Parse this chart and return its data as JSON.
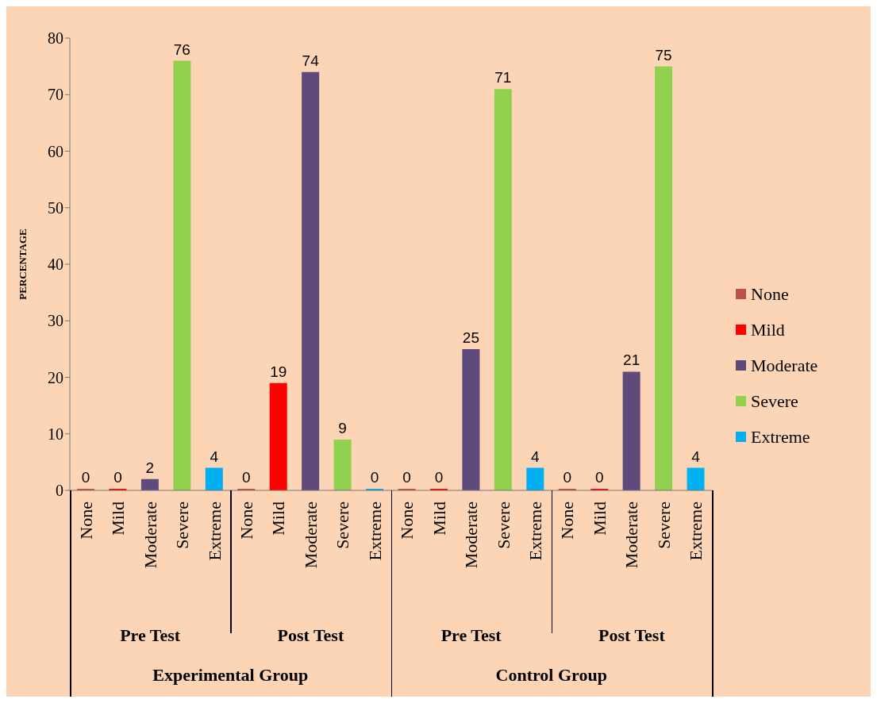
{
  "chart_data": {
    "type": "bar",
    "ylabel": "PERCENTAGE",
    "categories": [
      "None",
      "Mild",
      "Moderate",
      "Severe",
      "Extreme",
      "None",
      "Mild",
      "Moderate",
      "Severe",
      "Extreme",
      "None",
      "Mild",
      "Moderate",
      "Severe",
      "Extreme",
      "None",
      "Mild",
      "Moderate",
      "Severe",
      "Extreme"
    ],
    "series": [
      {
        "name": "None",
        "color": "#c0504d",
        "values": [
          0,
          null,
          null,
          null,
          null,
          0,
          null,
          null,
          null,
          null,
          0,
          null,
          null,
          null,
          null,
          0,
          null,
          null,
          null,
          null
        ]
      },
      {
        "name": "Mild",
        "color": "#ff0000",
        "values": [
          null,
          0,
          null,
          null,
          null,
          null,
          19,
          null,
          null,
          null,
          null,
          0,
          null,
          null,
          null,
          null,
          0,
          null,
          null,
          null
        ]
      },
      {
        "name": "Moderate",
        "color": "#604a7b",
        "values": [
          null,
          null,
          2,
          null,
          null,
          null,
          null,
          74,
          null,
          null,
          null,
          null,
          25,
          null,
          null,
          null,
          null,
          21,
          null,
          null
        ]
      },
      {
        "name": "Severe",
        "color": "#92d050",
        "values": [
          null,
          null,
          null,
          76,
          null,
          null,
          null,
          null,
          9,
          null,
          null,
          null,
          null,
          71,
          null,
          null,
          null,
          null,
          75,
          null
        ]
      },
      {
        "name": "Extreme",
        "color": "#00b0f0",
        "values": [
          null,
          null,
          null,
          null,
          4,
          null,
          null,
          null,
          null,
          0,
          null,
          null,
          null,
          null,
          4,
          null,
          null,
          null,
          null,
          4
        ]
      }
    ],
    "ylim": [
      0,
      80
    ],
    "yticks": [
      0,
      10,
      20,
      30,
      40,
      50,
      60,
      70,
      80
    ],
    "legend": "right",
    "data_labels": true,
    "annotations": [
      "Pre Test",
      "Post Test",
      "Pre Test",
      "Post Test",
      "Experimental Group",
      "Control Group"
    ]
  }
}
